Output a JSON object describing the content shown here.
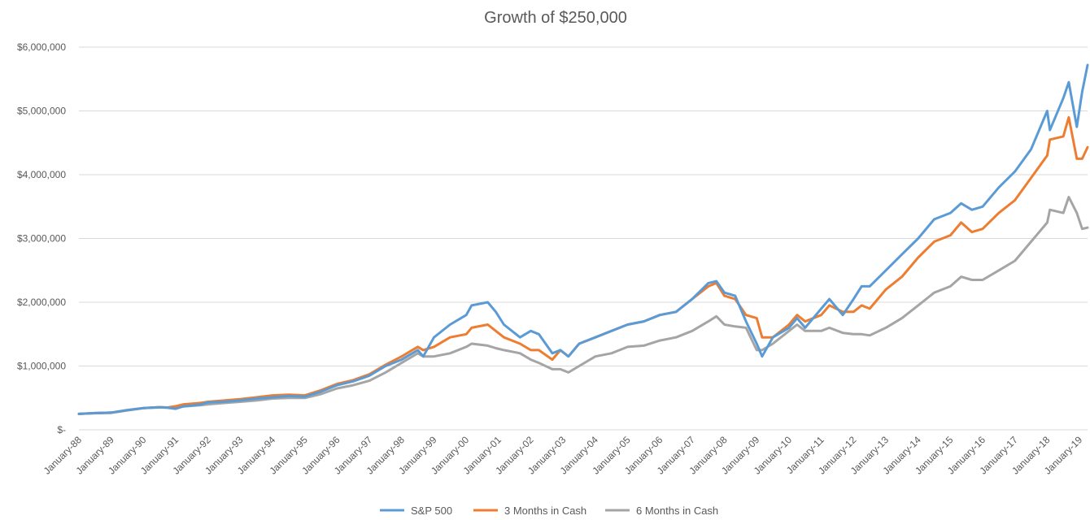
{
  "chart_data": {
    "type": "line",
    "title": "Growth of $250,000",
    "xlabel": "",
    "ylabel": "",
    "ylim": [
      0,
      6000000
    ],
    "y_ticks": [
      {
        "value": 0,
        "label": "$-"
      },
      {
        "value": 1000000,
        "label": "$1,000,000"
      },
      {
        "value": 2000000,
        "label": "$2,000,000"
      },
      {
        "value": 3000000,
        "label": "$3,000,000"
      },
      {
        "value": 4000000,
        "label": "$4,000,000"
      },
      {
        "value": 5000000,
        "label": "$5,000,000"
      },
      {
        "value": 6000000,
        "label": "$6,000,000"
      }
    ],
    "x_ticks": [
      "January-88",
      "January-89",
      "January-90",
      "January-91",
      "January-92",
      "January-93",
      "January-94",
      "January-95",
      "January-96",
      "January-97",
      "January-98",
      "January-99",
      "January-00",
      "January-01",
      "January-02",
      "January-03",
      "January-04",
      "January-05",
      "January-06",
      "January-07",
      "January-08",
      "January-09",
      "January-10",
      "January-11",
      "January-12",
      "January-13",
      "January-14",
      "January-15",
      "January-16",
      "January-17",
      "January-18",
      "January-19"
    ],
    "x_range": [
      "1988-01",
      "2019-04"
    ],
    "grid": "horizontal",
    "legend_position": "bottom",
    "series": [
      {
        "name": "S&P 500",
        "color": "#5b9bd5",
        "points": [
          [
            "1988-01",
            250000
          ],
          [
            "1988-07",
            262000
          ],
          [
            "1989-01",
            270000
          ],
          [
            "1989-07",
            310000
          ],
          [
            "1990-01",
            340000
          ],
          [
            "1990-07",
            355000
          ],
          [
            "1990-10",
            345000
          ],
          [
            "1991-01",
            330000
          ],
          [
            "1991-04",
            370000
          ],
          [
            "1991-10",
            395000
          ],
          [
            "1992-01",
            430000
          ],
          [
            "1992-07",
            440000
          ],
          [
            "1993-01",
            460000
          ],
          [
            "1993-07",
            490000
          ],
          [
            "1994-01",
            510000
          ],
          [
            "1994-07",
            530000
          ],
          [
            "1995-01",
            520000
          ],
          [
            "1995-07",
            600000
          ],
          [
            "1996-01",
            700000
          ],
          [
            "1996-07",
            760000
          ],
          [
            "1997-01",
            850000
          ],
          [
            "1997-07",
            1000000
          ],
          [
            "1998-01",
            1100000
          ],
          [
            "1998-07",
            1250000
          ],
          [
            "1998-09",
            1150000
          ],
          [
            "1999-01",
            1450000
          ],
          [
            "1999-07",
            1650000
          ],
          [
            "2000-01",
            1800000
          ],
          [
            "2000-03",
            1950000
          ],
          [
            "2000-09",
            2000000
          ],
          [
            "2000-12",
            1850000
          ],
          [
            "2001-03",
            1650000
          ],
          [
            "2001-09",
            1450000
          ],
          [
            "2002-01",
            1550000
          ],
          [
            "2002-04",
            1500000
          ],
          [
            "2002-09",
            1200000
          ],
          [
            "2002-12",
            1250000
          ],
          [
            "2003-03",
            1150000
          ],
          [
            "2003-07",
            1350000
          ],
          [
            "2004-01",
            1450000
          ],
          [
            "2004-07",
            1550000
          ],
          [
            "2005-01",
            1650000
          ],
          [
            "2005-07",
            1700000
          ],
          [
            "2006-01",
            1800000
          ],
          [
            "2006-07",
            1850000
          ],
          [
            "2007-01",
            2050000
          ],
          [
            "2007-07",
            2300000
          ],
          [
            "2007-10",
            2330000
          ],
          [
            "2008-01",
            2150000
          ],
          [
            "2008-05",
            2100000
          ],
          [
            "2008-09",
            1700000
          ],
          [
            "2009-01",
            1350000
          ],
          [
            "2009-03",
            1150000
          ],
          [
            "2009-07",
            1450000
          ],
          [
            "2010-01",
            1600000
          ],
          [
            "2010-04",
            1750000
          ],
          [
            "2010-07",
            1600000
          ],
          [
            "2011-01",
            1900000
          ],
          [
            "2011-04",
            2050000
          ],
          [
            "2011-09",
            1800000
          ],
          [
            "2012-01",
            2050000
          ],
          [
            "2012-04",
            2250000
          ],
          [
            "2012-07",
            2250000
          ],
          [
            "2013-01",
            2500000
          ],
          [
            "2013-07",
            2750000
          ],
          [
            "2014-01",
            3000000
          ],
          [
            "2014-07",
            3300000
          ],
          [
            "2015-01",
            3400000
          ],
          [
            "2015-05",
            3550000
          ],
          [
            "2015-09",
            3450000
          ],
          [
            "2016-01",
            3500000
          ],
          [
            "2016-07",
            3800000
          ],
          [
            "2017-01",
            4050000
          ],
          [
            "2017-07",
            4400000
          ],
          [
            "2018-01",
            5000000
          ],
          [
            "2018-02",
            4700000
          ],
          [
            "2018-07",
            5200000
          ],
          [
            "2018-09",
            5450000
          ],
          [
            "2018-12",
            4750000
          ],
          [
            "2019-02",
            5300000
          ],
          [
            "2019-04",
            5720000
          ]
        ]
      },
      {
        "name": "3 Months in Cash",
        "color": "#ed7d31",
        "points": [
          [
            "1988-01",
            250000
          ],
          [
            "1988-07",
            262000
          ],
          [
            "1989-01",
            270000
          ],
          [
            "1989-07",
            310000
          ],
          [
            "1990-01",
            340000
          ],
          [
            "1990-07",
            355000
          ],
          [
            "1990-10",
            350000
          ],
          [
            "1991-01",
            370000
          ],
          [
            "1991-04",
            400000
          ],
          [
            "1991-10",
            420000
          ],
          [
            "1992-01",
            440000
          ],
          [
            "1992-07",
            460000
          ],
          [
            "1993-01",
            480000
          ],
          [
            "1993-07",
            510000
          ],
          [
            "1994-01",
            540000
          ],
          [
            "1994-07",
            550000
          ],
          [
            "1995-01",
            540000
          ],
          [
            "1995-07",
            620000
          ],
          [
            "1996-01",
            720000
          ],
          [
            "1996-07",
            780000
          ],
          [
            "1997-01",
            870000
          ],
          [
            "1997-07",
            1020000
          ],
          [
            "1998-01",
            1150000
          ],
          [
            "1998-07",
            1300000
          ],
          [
            "1998-09",
            1250000
          ],
          [
            "1999-01",
            1300000
          ],
          [
            "1999-07",
            1450000
          ],
          [
            "2000-01",
            1500000
          ],
          [
            "2000-03",
            1600000
          ],
          [
            "2000-09",
            1650000
          ],
          [
            "2000-12",
            1550000
          ],
          [
            "2001-03",
            1450000
          ],
          [
            "2001-09",
            1350000
          ],
          [
            "2002-01",
            1250000
          ],
          [
            "2002-04",
            1250000
          ],
          [
            "2002-09",
            1100000
          ],
          [
            "2002-12",
            1250000
          ],
          [
            "2003-03",
            1150000
          ],
          [
            "2003-07",
            1350000
          ],
          [
            "2004-01",
            1450000
          ],
          [
            "2004-07",
            1550000
          ],
          [
            "2005-01",
            1650000
          ],
          [
            "2005-07",
            1700000
          ],
          [
            "2006-01",
            1800000
          ],
          [
            "2006-07",
            1850000
          ],
          [
            "2007-01",
            2050000
          ],
          [
            "2007-07",
            2250000
          ],
          [
            "2007-10",
            2300000
          ],
          [
            "2008-01",
            2100000
          ],
          [
            "2008-05",
            2050000
          ],
          [
            "2008-09",
            1800000
          ],
          [
            "2009-01",
            1750000
          ],
          [
            "2009-03",
            1450000
          ],
          [
            "2009-07",
            1450000
          ],
          [
            "2010-01",
            1650000
          ],
          [
            "2010-04",
            1800000
          ],
          [
            "2010-07",
            1700000
          ],
          [
            "2011-01",
            1800000
          ],
          [
            "2011-04",
            1950000
          ],
          [
            "2011-09",
            1850000
          ],
          [
            "2012-01",
            1850000
          ],
          [
            "2012-04",
            1950000
          ],
          [
            "2012-07",
            1900000
          ],
          [
            "2013-01",
            2200000
          ],
          [
            "2013-07",
            2400000
          ],
          [
            "2014-01",
            2700000
          ],
          [
            "2014-07",
            2950000
          ],
          [
            "2015-01",
            3050000
          ],
          [
            "2015-05",
            3250000
          ],
          [
            "2015-09",
            3100000
          ],
          [
            "2016-01",
            3150000
          ],
          [
            "2016-07",
            3400000
          ],
          [
            "2017-01",
            3600000
          ],
          [
            "2017-07",
            3950000
          ],
          [
            "2018-01",
            4300000
          ],
          [
            "2018-02",
            4550000
          ],
          [
            "2018-07",
            4600000
          ],
          [
            "2018-09",
            4900000
          ],
          [
            "2018-12",
            4250000
          ],
          [
            "2019-02",
            4250000
          ],
          [
            "2019-04",
            4430000
          ]
        ]
      },
      {
        "name": "6 Months in Cash",
        "color": "#a5a5a5",
        "points": [
          [
            "1988-01",
            250000
          ],
          [
            "1988-07",
            260000
          ],
          [
            "1989-01",
            265000
          ],
          [
            "1989-07",
            305000
          ],
          [
            "1990-01",
            340000
          ],
          [
            "1990-07",
            350000
          ],
          [
            "1990-10",
            350000
          ],
          [
            "1991-01",
            350000
          ],
          [
            "1991-04",
            365000
          ],
          [
            "1991-10",
            385000
          ],
          [
            "1992-01",
            400000
          ],
          [
            "1992-07",
            420000
          ],
          [
            "1993-01",
            440000
          ],
          [
            "1993-07",
            460000
          ],
          [
            "1994-01",
            490000
          ],
          [
            "1994-07",
            500000
          ],
          [
            "1995-01",
            500000
          ],
          [
            "1995-07",
            560000
          ],
          [
            "1996-01",
            650000
          ],
          [
            "1996-07",
            700000
          ],
          [
            "1997-01",
            770000
          ],
          [
            "1997-07",
            900000
          ],
          [
            "1998-01",
            1050000
          ],
          [
            "1998-07",
            1200000
          ],
          [
            "1998-09",
            1150000
          ],
          [
            "1999-01",
            1150000
          ],
          [
            "1999-07",
            1200000
          ],
          [
            "2000-01",
            1300000
          ],
          [
            "2000-03",
            1350000
          ],
          [
            "2000-09",
            1320000
          ],
          [
            "2000-12",
            1280000
          ],
          [
            "2001-03",
            1250000
          ],
          [
            "2001-09",
            1200000
          ],
          [
            "2002-01",
            1100000
          ],
          [
            "2002-04",
            1050000
          ],
          [
            "2002-09",
            950000
          ],
          [
            "2002-12",
            950000
          ],
          [
            "2003-03",
            900000
          ],
          [
            "2003-07",
            1000000
          ],
          [
            "2004-01",
            1150000
          ],
          [
            "2004-07",
            1200000
          ],
          [
            "2005-01",
            1300000
          ],
          [
            "2005-07",
            1320000
          ],
          [
            "2006-01",
            1400000
          ],
          [
            "2006-07",
            1450000
          ],
          [
            "2007-01",
            1550000
          ],
          [
            "2007-07",
            1700000
          ],
          [
            "2007-10",
            1780000
          ],
          [
            "2008-01",
            1650000
          ],
          [
            "2008-05",
            1620000
          ],
          [
            "2008-09",
            1600000
          ],
          [
            "2009-01",
            1250000
          ],
          [
            "2009-03",
            1250000
          ],
          [
            "2009-07",
            1350000
          ],
          [
            "2010-01",
            1550000
          ],
          [
            "2010-04",
            1650000
          ],
          [
            "2010-07",
            1550000
          ],
          [
            "2011-01",
            1550000
          ],
          [
            "2011-04",
            1600000
          ],
          [
            "2011-09",
            1520000
          ],
          [
            "2012-01",
            1500000
          ],
          [
            "2012-04",
            1500000
          ],
          [
            "2012-07",
            1480000
          ],
          [
            "2013-01",
            1600000
          ],
          [
            "2013-07",
            1750000
          ],
          [
            "2014-01",
            1950000
          ],
          [
            "2014-07",
            2150000
          ],
          [
            "2015-01",
            2250000
          ],
          [
            "2015-05",
            2400000
          ],
          [
            "2015-09",
            2350000
          ],
          [
            "2016-01",
            2350000
          ],
          [
            "2016-07",
            2500000
          ],
          [
            "2017-01",
            2650000
          ],
          [
            "2017-07",
            2950000
          ],
          [
            "2018-01",
            3250000
          ],
          [
            "2018-02",
            3450000
          ],
          [
            "2018-07",
            3400000
          ],
          [
            "2018-09",
            3650000
          ],
          [
            "2018-12",
            3400000
          ],
          [
            "2019-02",
            3150000
          ],
          [
            "2019-04",
            3170000
          ]
        ]
      }
    ]
  }
}
